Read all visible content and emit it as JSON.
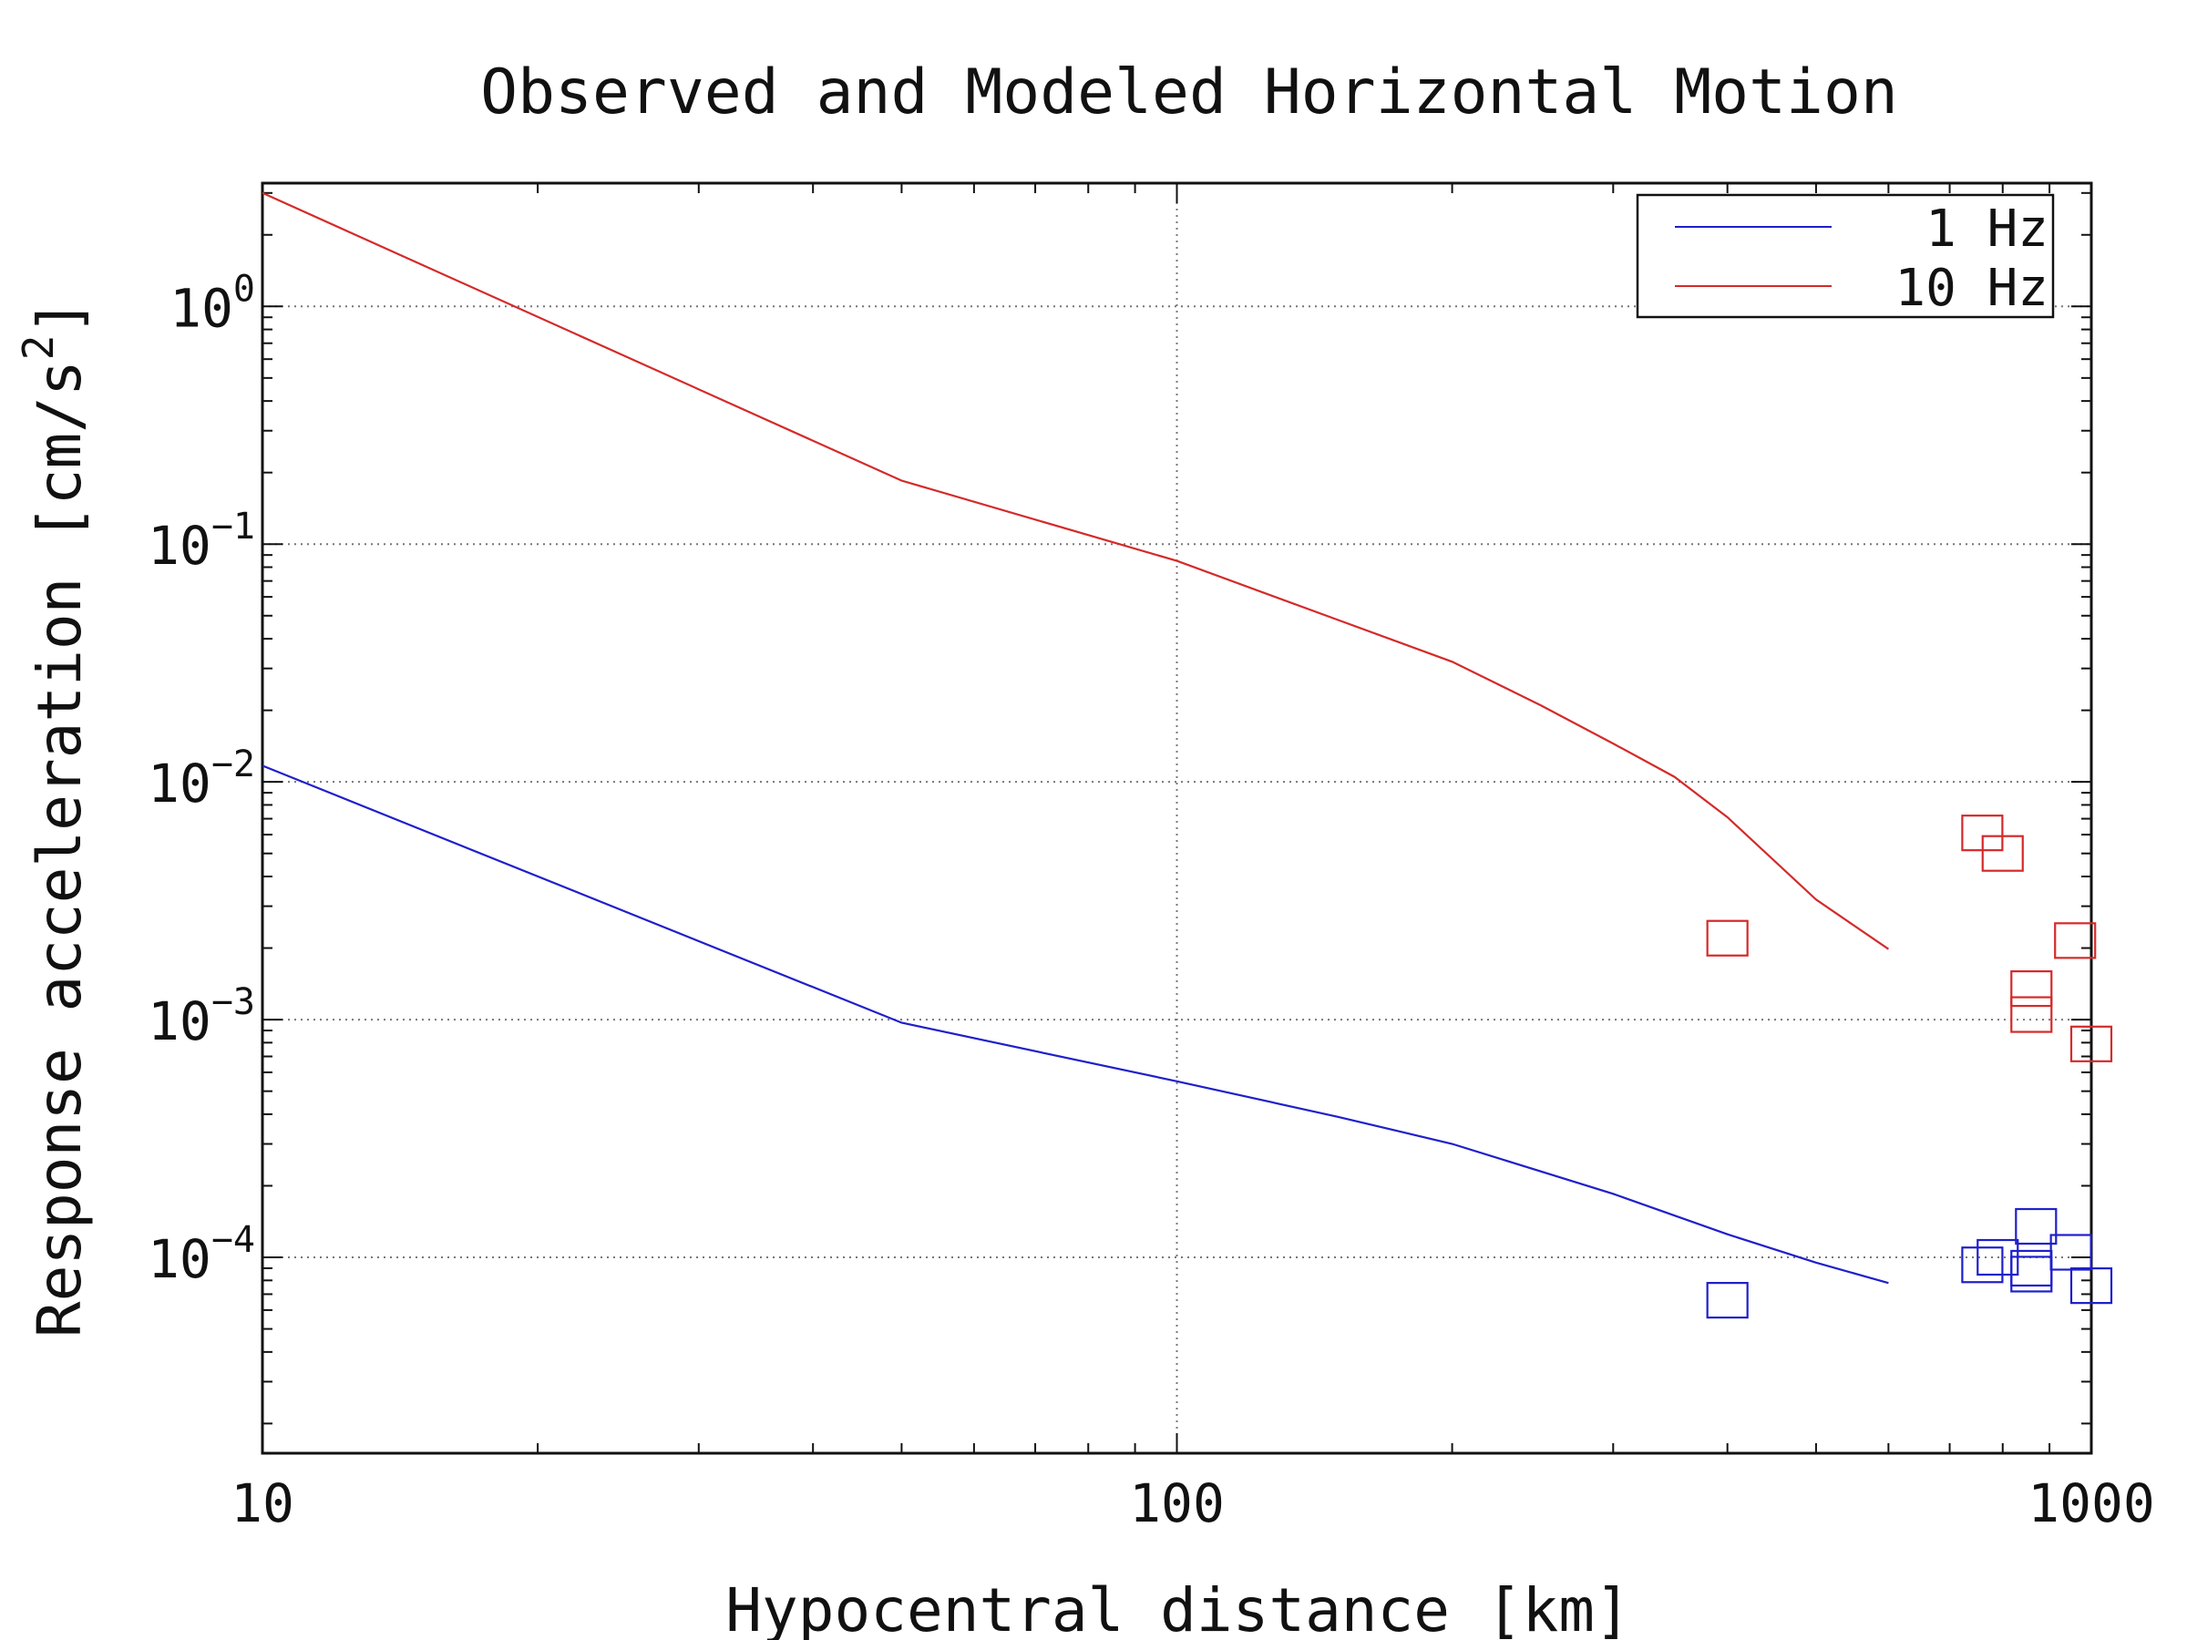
{
  "chart_data": {
    "type": "line",
    "title": "Observed and Modeled Horizontal Motion",
    "xlabel": "Hypocentral distance [km]",
    "ylabel": "Response acceleration [cm/s",
    "ylabel_sup": "2",
    "ylabel_close": "]",
    "xscale": "log",
    "yscale": "log",
    "xlim": [
      10,
      1000
    ],
    "ylim": [
      1.5e-05,
      3.3
    ],
    "grid": true,
    "legend_position": "top-right",
    "x_ticks": [
      {
        "value": 10,
        "label": "10"
      },
      {
        "value": 100,
        "label": "100"
      },
      {
        "value": 1000,
        "label": "1000"
      }
    ],
    "y_ticks": [
      {
        "value": 1,
        "base": "10",
        "exp": "0"
      },
      {
        "value": 0.1,
        "base": "10",
        "exp": "−1"
      },
      {
        "value": 0.01,
        "base": "10",
        "exp": "−2"
      },
      {
        "value": 0.001,
        "base": "10",
        "exp": "−3"
      },
      {
        "value": 0.0001,
        "base": "10",
        "exp": "−4"
      }
    ],
    "series": [
      {
        "name": "1 Hz",
        "color": "#1f1fcc",
        "model": {
          "x": [
            10,
            50,
            100,
            150,
            200,
            300,
            400,
            500,
            600
          ],
          "y": [
            0.0117,
            0.00097,
            0.00055,
            0.00039,
            0.0003,
            0.000185,
            0.000125,
            9.5e-05,
            7.8e-05
          ]
        },
        "observed": {
          "x": [
            400,
            760,
            790,
            860,
            860,
            870,
            950,
            1000
          ],
          "y": [
            6.6e-05,
            9.3e-05,
            0.0001,
            9e-05,
            8.5e-05,
            0.000135,
            0.000105,
            7.6e-05
          ]
        }
      },
      {
        "name": "10 Hz",
        "color": "#d42a2a",
        "model": {
          "x": [
            10,
            50,
            100,
            150,
            200,
            250,
            300,
            350,
            400,
            500,
            600
          ],
          "y": [
            3.0,
            0.185,
            0.085,
            0.048,
            0.032,
            0.021,
            0.0145,
            0.0105,
            0.0071,
            0.0032,
            0.00198
          ]
        },
        "observed": {
          "x": [
            400,
            760,
            800,
            860,
            860,
            960,
            1000
          ],
          "y": [
            0.0022,
            0.0061,
            0.005,
            0.00135,
            0.00105,
            0.00215,
            0.00079
          ]
        }
      }
    ]
  }
}
